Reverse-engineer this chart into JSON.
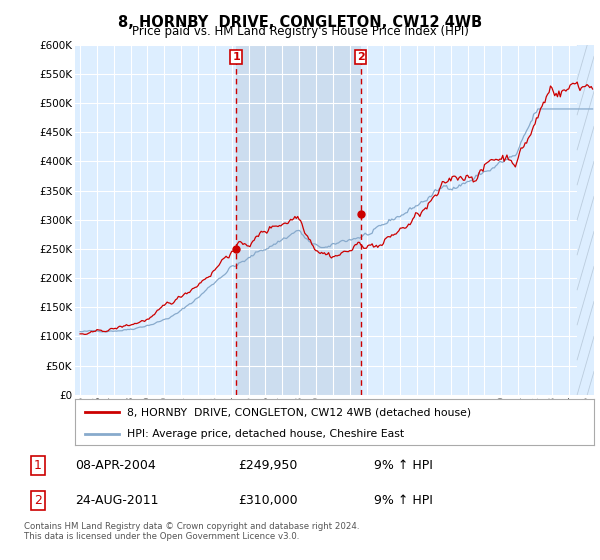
{
  "title": "8, HORNBY  DRIVE, CONGLETON, CW12 4WB",
  "subtitle": "Price paid vs. HM Land Registry's House Price Index (HPI)",
  "ylim": [
    0,
    600000
  ],
  "yticks": [
    0,
    50000,
    100000,
    150000,
    200000,
    250000,
    300000,
    350000,
    400000,
    450000,
    500000,
    550000,
    600000
  ],
  "ytick_labels": [
    "£0",
    "£50K",
    "£100K",
    "£150K",
    "£200K",
    "£250K",
    "£300K",
    "£350K",
    "£400K",
    "£450K",
    "£500K",
    "£550K",
    "£600K"
  ],
  "legend_line1": "8, HORNBY  DRIVE, CONGLETON, CW12 4WB (detached house)",
  "legend_line2": "HPI: Average price, detached house, Cheshire East",
  "marker1_date": "08-APR-2004",
  "marker1_price": "£249,950",
  "marker1_hpi": "9% ↑ HPI",
  "marker1_x": 2004.27,
  "marker1_y": 249950,
  "marker2_date": "24-AUG-2011",
  "marker2_price": "£310,000",
  "marker2_hpi": "9% ↑ HPI",
  "marker2_x": 2011.65,
  "marker2_y": 310000,
  "line_color_red": "#cc0000",
  "line_color_blue": "#88aacc",
  "shade_color": "#ccddef",
  "plot_bg": "#ddeeff",
  "grid_color": "#ffffff",
  "footer": "Contains HM Land Registry data © Crown copyright and database right 2024.\nThis data is licensed under the Open Government Licence v3.0.",
  "xlim_left": 1994.7,
  "xlim_right": 2025.5
}
